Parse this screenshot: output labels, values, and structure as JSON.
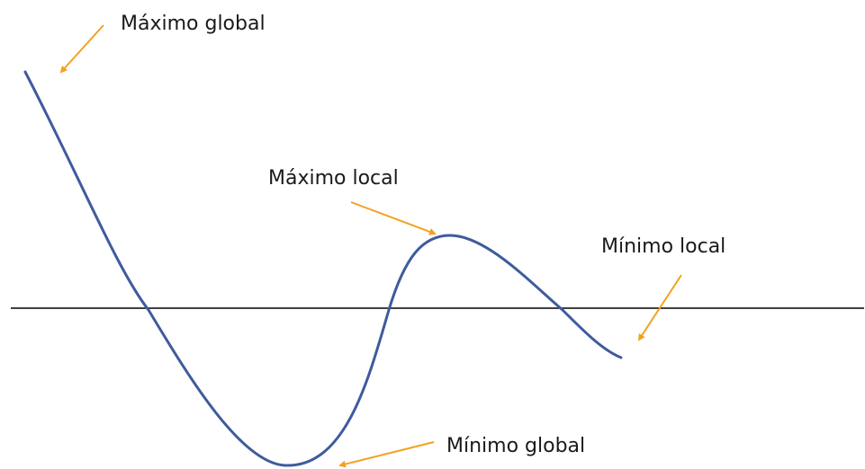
{
  "labels": {
    "global_max": "Máximo global",
    "local_max": "Máximo local",
    "local_min": "Mínimo local",
    "global_min": "Mínimo global"
  },
  "colors": {
    "curve": "#3f5b9e",
    "axis": "#000000",
    "arrow": "#f4a020",
    "text": "#1a1a1a"
  }
}
